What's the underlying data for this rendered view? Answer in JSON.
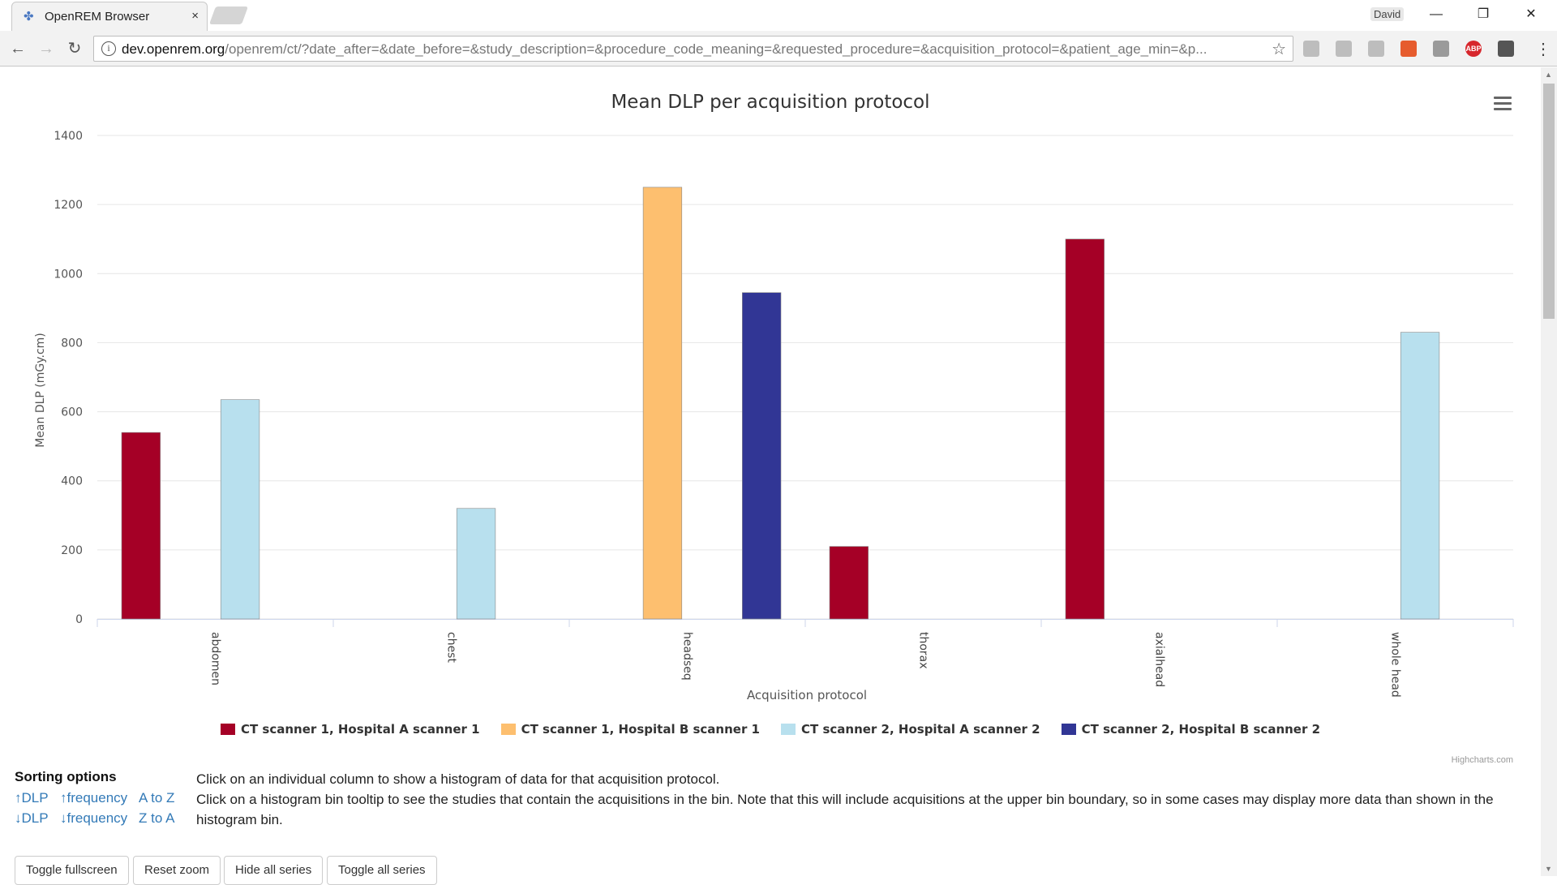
{
  "browser": {
    "tab_title": "OpenREM Browser",
    "tab_close": "×",
    "profile_name": "David",
    "url_host": "dev.openrem.org",
    "url_path": "/openrem/ct/?date_after=&date_before=&study_description=&procedure_code_meaning=&requested_procedure=&acquisition_protocol=&patient_age_min=&p...",
    "nav_icons": [
      "back-icon",
      "forward-icon",
      "reload-icon"
    ],
    "extensions": [
      {
        "name": "drive-extension-icon",
        "label": "",
        "color": "#bdbdbd"
      },
      {
        "name": "pdf-extension-icon",
        "label": "",
        "color": "#bdbdbd"
      },
      {
        "name": "page-extension-icon",
        "label": "",
        "color": "#bdbdbd"
      },
      {
        "name": "office-extension-icon",
        "label": "",
        "color": "#e65c2e"
      },
      {
        "name": "snip-extension-icon",
        "label": "",
        "color": "#9a9a9a"
      },
      {
        "name": "adblock-extension-icon",
        "label": "ABP",
        "color": "#d7262c"
      },
      {
        "name": "mask-extension-icon",
        "label": "",
        "color": "#555555"
      }
    ]
  },
  "chart": {
    "menu_icon": "hamburger-menu-icon",
    "credits": "Highcharts.com"
  },
  "chart_data": {
    "type": "bar",
    "title": "Mean DLP per acquisition protocol",
    "xlabel": "Acquisition protocol",
    "ylabel": "Mean DLP (mGy.cm)",
    "ylim": [
      0,
      1400
    ],
    "yticks": [
      0,
      200,
      400,
      600,
      800,
      1000,
      1200,
      1400
    ],
    "grid": true,
    "legend_position": "bottom-center",
    "categories": [
      "abdomen",
      "chest",
      "headseq",
      "thorax",
      "axialhead",
      "whole head"
    ],
    "series": [
      {
        "name": "CT scanner 1, Hospital A scanner 1",
        "color": "#a50026",
        "values": [
          540,
          null,
          null,
          210,
          1100,
          null
        ]
      },
      {
        "name": "CT scanner 1, Hospital B scanner 1",
        "color": "#fdbf6f",
        "values": [
          null,
          null,
          1250,
          null,
          null,
          null
        ]
      },
      {
        "name": "CT scanner 2, Hospital A scanner 2",
        "color": "#b8e0ee",
        "values": [
          635,
          320,
          null,
          null,
          null,
          830
        ]
      },
      {
        "name": "CT scanner 2, Hospital B scanner 2",
        "color": "#313695",
        "values": [
          null,
          null,
          945,
          null,
          null,
          null
        ]
      }
    ]
  },
  "sorting": {
    "title": "Sorting options",
    "links": [
      {
        "name": "sort-dlp-ascending-link",
        "label": "↑DLP"
      },
      {
        "name": "sort-frequency-ascending-link",
        "label": "↑frequency"
      },
      {
        "name": "sort-a-to-z-link",
        "label": "A to Z"
      },
      {
        "name": "sort-dlp-descending-link",
        "label": "↓DLP"
      },
      {
        "name": "sort-frequency-descending-link",
        "label": "↓frequency"
      },
      {
        "name": "sort-z-to-a-link",
        "label": "Z to A"
      }
    ]
  },
  "info": {
    "line1": "Click on an individual column to show a histogram of data for that acquisition protocol.",
    "line2": "Click on a histogram bin tooltip to see the studies that contain the acquisitions in the bin. Note that this will include acquisitions at the upper bin boundary, so in some cases may display more data than shown in the histogram bin."
  },
  "buttons": {
    "toggle_fullscreen": "Toggle fullscreen",
    "reset_zoom": "Reset zoom",
    "hide_all_series": "Hide all series",
    "toggle_all_series": "Toggle all series"
  }
}
